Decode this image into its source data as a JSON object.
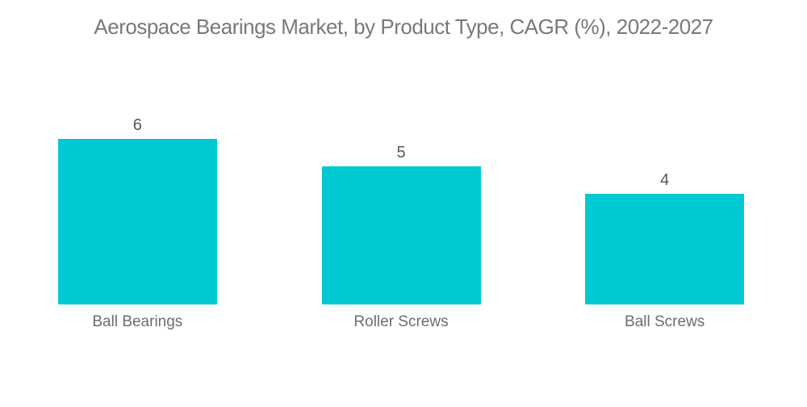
{
  "chart_data": {
    "type": "bar",
    "title": "Aerospace Bearings Market, by Product Type, CAGR (%), 2022-2027",
    "categories": [
      "Ball Bearings",
      "Roller Screws",
      "Ball Screws"
    ],
    "values": [
      6,
      5,
      4
    ],
    "xlabel": "",
    "ylabel": "",
    "ylim": [
      0,
      6
    ],
    "grid": false,
    "legend": false,
    "axes_visible": false,
    "value_labels_position": "above-bar",
    "bar_color": "#00c9d1",
    "title_color": "#77797c",
    "value_label_color": "#55565a",
    "category_label_color": "#6b6d70",
    "background_color": "#ffffff"
  }
}
